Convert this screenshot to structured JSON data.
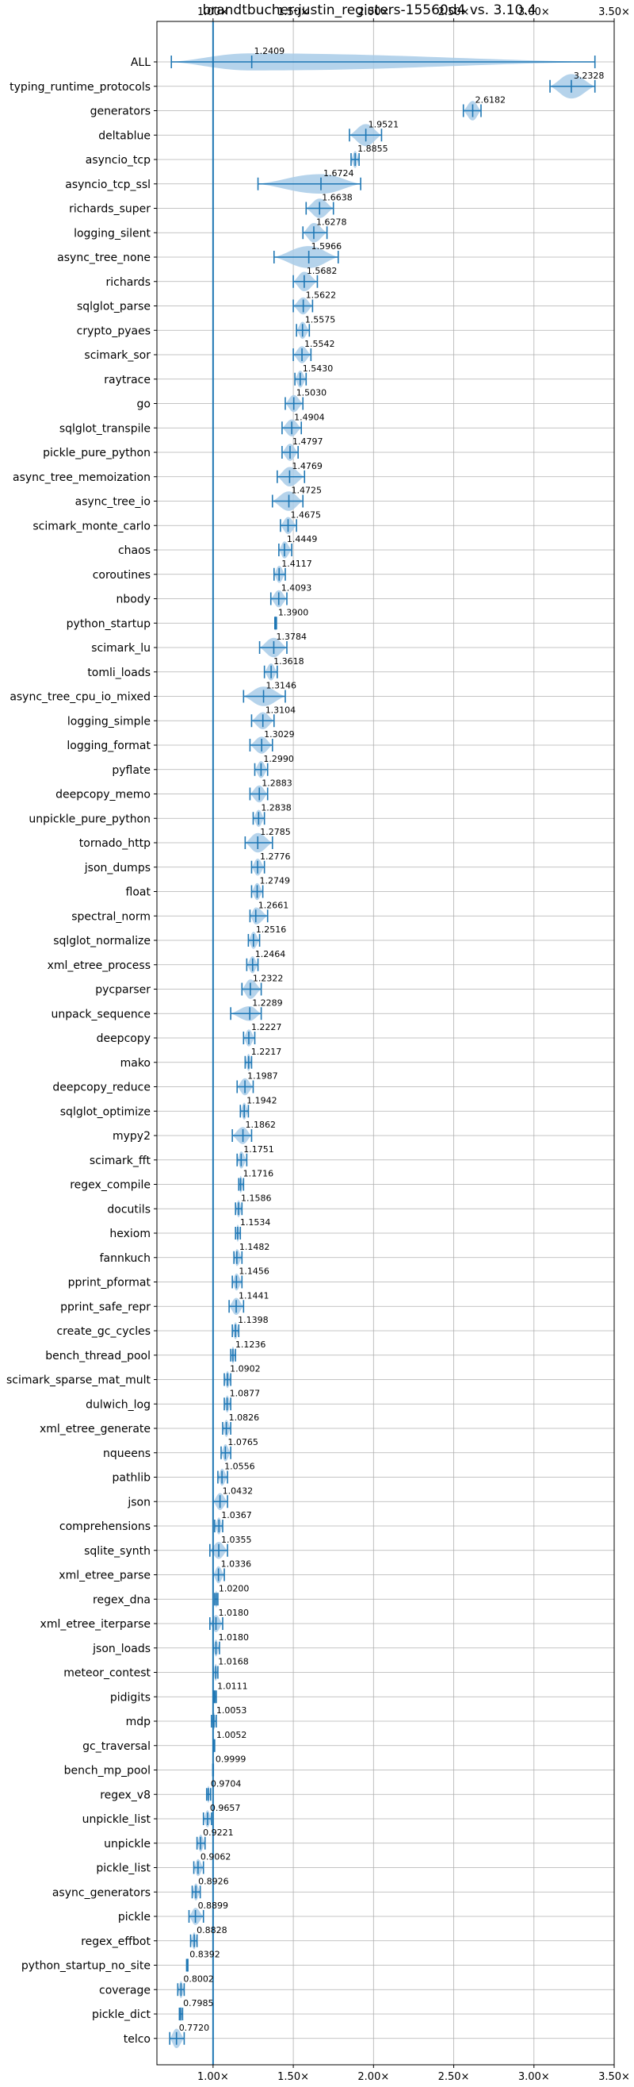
{
  "chart_data": {
    "type": "violin",
    "title": "brandtbucher-justin_registers-15560d4 vs. 3.10.4",
    "xlabel": "",
    "ylabel": "",
    "xlim": [
      0.65,
      3.5
    ],
    "x_ticks": [
      1.0,
      1.5,
      2.0,
      2.5,
      3.0,
      3.5
    ],
    "x_tick_labels": [
      "1.00×",
      "1.50×",
      "2.00×",
      "2.50×",
      "3.00×",
      "3.50×"
    ],
    "reference_line": 1.0,
    "grid": true,
    "color": "#1f77b4",
    "fill_color": "#a8cbe8",
    "benchmarks": [
      {
        "name": "ALL",
        "label": "1.2409",
        "median": 1.2409,
        "min": 0.74,
        "max": 3.38,
        "width": 0.35
      },
      {
        "name": "typing_runtime_protocols",
        "label": "3.2328",
        "median": 3.2328,
        "min": 3.1,
        "max": 3.38,
        "width": 0.5
      },
      {
        "name": "generators",
        "label": "2.6182",
        "median": 2.6182,
        "min": 2.56,
        "max": 2.67,
        "width": 0.4
      },
      {
        "name": "deltablue",
        "label": "1.9521",
        "median": 1.9521,
        "min": 1.85,
        "max": 2.05,
        "width": 0.45
      },
      {
        "name": "asyncio_tcp",
        "label": "1.8855",
        "median": 1.8855,
        "min": 1.86,
        "max": 1.91,
        "width": 0.35
      },
      {
        "name": "asyncio_tcp_ssl",
        "label": "1.6724",
        "median": 1.6724,
        "min": 1.28,
        "max": 1.92,
        "width": 0.4
      },
      {
        "name": "richards_super",
        "label": "1.6638",
        "median": 1.6638,
        "min": 1.58,
        "max": 1.75,
        "width": 0.4
      },
      {
        "name": "logging_silent",
        "label": "1.6278",
        "median": 1.6278,
        "min": 1.56,
        "max": 1.71,
        "width": 0.4
      },
      {
        "name": "async_tree_none",
        "label": "1.5966",
        "median": 1.5966,
        "min": 1.38,
        "max": 1.78,
        "width": 0.45
      },
      {
        "name": "richards",
        "label": "1.5682",
        "median": 1.5682,
        "min": 1.5,
        "max": 1.65,
        "width": 0.4
      },
      {
        "name": "sqlglot_parse",
        "label": "1.5622",
        "median": 1.5622,
        "min": 1.5,
        "max": 1.62,
        "width": 0.35
      },
      {
        "name": "crypto_pyaes",
        "label": "1.5575",
        "median": 1.5575,
        "min": 1.52,
        "max": 1.6,
        "width": 0.35
      },
      {
        "name": "scimark_sor",
        "label": "1.5542",
        "median": 1.5542,
        "min": 1.5,
        "max": 1.61,
        "width": 0.35
      },
      {
        "name": "raytrace",
        "label": "1.5430",
        "median": 1.543,
        "min": 1.51,
        "max": 1.58,
        "width": 0.35
      },
      {
        "name": "go",
        "label": "1.5030",
        "median": 1.503,
        "min": 1.45,
        "max": 1.56,
        "width": 0.35
      },
      {
        "name": "sqlglot_transpile",
        "label": "1.4904",
        "median": 1.4904,
        "min": 1.43,
        "max": 1.55,
        "width": 0.35
      },
      {
        "name": "pickle_pure_python",
        "label": "1.4797",
        "median": 1.4797,
        "min": 1.43,
        "max": 1.53,
        "width": 0.35
      },
      {
        "name": "async_tree_memoization",
        "label": "1.4769",
        "median": 1.4769,
        "min": 1.4,
        "max": 1.57,
        "width": 0.4
      },
      {
        "name": "async_tree_io",
        "label": "1.4725",
        "median": 1.4725,
        "min": 1.37,
        "max": 1.56,
        "width": 0.4
      },
      {
        "name": "scimark_monte_carlo",
        "label": "1.4675",
        "median": 1.4675,
        "min": 1.42,
        "max": 1.52,
        "width": 0.35
      },
      {
        "name": "chaos",
        "label": "1.4449",
        "median": 1.4449,
        "min": 1.41,
        "max": 1.49,
        "width": 0.35
      },
      {
        "name": "coroutines",
        "label": "1.4117",
        "median": 1.4117,
        "min": 1.38,
        "max": 1.45,
        "width": 0.35
      },
      {
        "name": "nbody",
        "label": "1.4093",
        "median": 1.4093,
        "min": 1.36,
        "max": 1.46,
        "width": 0.35
      },
      {
        "name": "python_startup",
        "label": "1.3900",
        "median": 1.39,
        "min": 1.385,
        "max": 1.395,
        "width": 0.3
      },
      {
        "name": "scimark_lu",
        "label": "1.3784",
        "median": 1.3784,
        "min": 1.29,
        "max": 1.46,
        "width": 0.4
      },
      {
        "name": "tomli_loads",
        "label": "1.3618",
        "median": 1.3618,
        "min": 1.32,
        "max": 1.4,
        "width": 0.35
      },
      {
        "name": "async_tree_cpu_io_mixed",
        "label": "1.3146",
        "median": 1.3146,
        "min": 1.19,
        "max": 1.45,
        "width": 0.4
      },
      {
        "name": "logging_simple",
        "label": "1.3104",
        "median": 1.3104,
        "min": 1.24,
        "max": 1.38,
        "width": 0.35
      },
      {
        "name": "logging_format",
        "label": "1.3029",
        "median": 1.3029,
        "min": 1.23,
        "max": 1.37,
        "width": 0.35
      },
      {
        "name": "pyflate",
        "label": "1.2990",
        "median": 1.299,
        "min": 1.26,
        "max": 1.34,
        "width": 0.35
      },
      {
        "name": "deepcopy_memo",
        "label": "1.2883",
        "median": 1.2883,
        "min": 1.23,
        "max": 1.34,
        "width": 0.35
      },
      {
        "name": "unpickle_pure_python",
        "label": "1.2838",
        "median": 1.2838,
        "min": 1.25,
        "max": 1.32,
        "width": 0.35
      },
      {
        "name": "tornado_http",
        "label": "1.2785",
        "median": 1.2785,
        "min": 1.2,
        "max": 1.37,
        "width": 0.4
      },
      {
        "name": "json_dumps",
        "label": "1.2776",
        "median": 1.2776,
        "min": 1.24,
        "max": 1.32,
        "width": 0.35
      },
      {
        "name": "float",
        "label": "1.2749",
        "median": 1.2749,
        "min": 1.24,
        "max": 1.31,
        "width": 0.35
      },
      {
        "name": "spectral_norm",
        "label": "1.2661",
        "median": 1.2661,
        "min": 1.23,
        "max": 1.34,
        "width": 0.35
      },
      {
        "name": "sqlglot_normalize",
        "label": "1.2516",
        "median": 1.2516,
        "min": 1.22,
        "max": 1.29,
        "width": 0.35
      },
      {
        "name": "xml_etree_process",
        "label": "1.2464",
        "median": 1.2464,
        "min": 1.21,
        "max": 1.28,
        "width": 0.35
      },
      {
        "name": "pycparser",
        "label": "1.2322",
        "median": 1.2322,
        "min": 1.18,
        "max": 1.3,
        "width": 0.4
      },
      {
        "name": "unpack_sequence",
        "label": "1.2289",
        "median": 1.2289,
        "min": 1.11,
        "max": 1.3,
        "width": 0.3
      },
      {
        "name": "deepcopy",
        "label": "1.2227",
        "median": 1.2227,
        "min": 1.19,
        "max": 1.26,
        "width": 0.35
      },
      {
        "name": "mako",
        "label": "1.2217",
        "median": 1.2217,
        "min": 1.2,
        "max": 1.24,
        "width": 0.35
      },
      {
        "name": "deepcopy_reduce",
        "label": "1.1987",
        "median": 1.1987,
        "min": 1.15,
        "max": 1.25,
        "width": 0.35
      },
      {
        "name": "sqlglot_optimize",
        "label": "1.1942",
        "median": 1.1942,
        "min": 1.17,
        "max": 1.22,
        "width": 0.35
      },
      {
        "name": "mypy2",
        "label": "1.1862",
        "median": 1.1862,
        "min": 1.12,
        "max": 1.24,
        "width": 0.35
      },
      {
        "name": "scimark_fft",
        "label": "1.1751",
        "median": 1.1751,
        "min": 1.15,
        "max": 1.21,
        "width": 0.35
      },
      {
        "name": "regex_compile",
        "label": "1.1716",
        "median": 1.1716,
        "min": 1.16,
        "max": 1.19,
        "width": 0.35
      },
      {
        "name": "docutils",
        "label": "1.1586",
        "median": 1.1586,
        "min": 1.14,
        "max": 1.18,
        "width": 0.35
      },
      {
        "name": "hexiom",
        "label": "1.1534",
        "median": 1.1534,
        "min": 1.14,
        "max": 1.17,
        "width": 0.35
      },
      {
        "name": "fannkuch",
        "label": "1.1482",
        "median": 1.1482,
        "min": 1.13,
        "max": 1.18,
        "width": 0.35
      },
      {
        "name": "pprint_pformat",
        "label": "1.1456",
        "median": 1.1456,
        "min": 1.12,
        "max": 1.18,
        "width": 0.35
      },
      {
        "name": "pprint_safe_repr",
        "label": "1.1441",
        "median": 1.1441,
        "min": 1.1,
        "max": 1.19,
        "width": 0.35
      },
      {
        "name": "create_gc_cycles",
        "label": "1.1398",
        "median": 1.1398,
        "min": 1.12,
        "max": 1.16,
        "width": 0.35
      },
      {
        "name": "bench_thread_pool",
        "label": "1.1236",
        "median": 1.1236,
        "min": 1.11,
        "max": 1.14,
        "width": 0.35
      },
      {
        "name": "scimark_sparse_mat_mult",
        "label": "1.0902",
        "median": 1.0902,
        "min": 1.07,
        "max": 1.11,
        "width": 0.35
      },
      {
        "name": "dulwich_log",
        "label": "1.0877",
        "median": 1.0877,
        "min": 1.07,
        "max": 1.11,
        "width": 0.35
      },
      {
        "name": "xml_etree_generate",
        "label": "1.0826",
        "median": 1.0826,
        "min": 1.06,
        "max": 1.11,
        "width": 0.35
      },
      {
        "name": "nqueens",
        "label": "1.0765",
        "median": 1.0765,
        "min": 1.05,
        "max": 1.11,
        "width": 0.35
      },
      {
        "name": "pathlib",
        "label": "1.0556",
        "median": 1.0556,
        "min": 1.03,
        "max": 1.09,
        "width": 0.35
      },
      {
        "name": "json",
        "label": "1.0432",
        "median": 1.0432,
        "min": 1.0,
        "max": 1.09,
        "width": 0.35
      },
      {
        "name": "comprehensions",
        "label": "1.0367",
        "median": 1.0367,
        "min": 1.01,
        "max": 1.06,
        "width": 0.35
      },
      {
        "name": "sqlite_synth",
        "label": "1.0355",
        "median": 1.0355,
        "min": 0.98,
        "max": 1.09,
        "width": 0.35
      },
      {
        "name": "xml_etree_parse",
        "label": "1.0336",
        "median": 1.0336,
        "min": 1.0,
        "max": 1.07,
        "width": 0.35
      },
      {
        "name": "regex_dna",
        "label": "1.0200",
        "median": 1.02,
        "min": 1.01,
        "max": 1.03,
        "width": 0.35
      },
      {
        "name": "xml_etree_iterparse",
        "label": "1.0180",
        "median": 1.018,
        "min": 0.98,
        "max": 1.06,
        "width": 0.35
      },
      {
        "name": "json_loads",
        "label": "1.0180",
        "median": 1.018,
        "min": 1.0,
        "max": 1.04,
        "width": 0.35
      },
      {
        "name": "meteor_contest",
        "label": "1.0168",
        "median": 1.0168,
        "min": 1.0,
        "max": 1.03,
        "width": 0.35
      },
      {
        "name": "pidigits",
        "label": "1.0111",
        "median": 1.0111,
        "min": 1.005,
        "max": 1.02,
        "width": 0.3
      },
      {
        "name": "mdp",
        "label": "1.0053",
        "median": 1.0053,
        "min": 0.99,
        "max": 1.02,
        "width": 0.35
      },
      {
        "name": "gc_traversal",
        "label": "1.0052",
        "median": 1.0052,
        "min": 1.0,
        "max": 1.01,
        "width": 0.3
      },
      {
        "name": "bench_mp_pool",
        "label": "0.9999",
        "median": 0.9999,
        "min": 0.998,
        "max": 1.002,
        "width": 0.3
      },
      {
        "name": "regex_v8",
        "label": "0.9704",
        "median": 0.9704,
        "min": 0.96,
        "max": 0.985,
        "width": 0.35
      },
      {
        "name": "unpickle_list",
        "label": "0.9657",
        "median": 0.9657,
        "min": 0.94,
        "max": 0.99,
        "width": 0.35
      },
      {
        "name": "unpickle",
        "label": "0.9221",
        "median": 0.9221,
        "min": 0.9,
        "max": 0.95,
        "width": 0.35
      },
      {
        "name": "pickle_list",
        "label": "0.9062",
        "median": 0.9062,
        "min": 0.88,
        "max": 0.94,
        "width": 0.35
      },
      {
        "name": "async_generators",
        "label": "0.8926",
        "median": 0.8926,
        "min": 0.87,
        "max": 0.92,
        "width": 0.35
      },
      {
        "name": "pickle",
        "label": "0.8899",
        "median": 0.8899,
        "min": 0.85,
        "max": 0.94,
        "width": 0.35
      },
      {
        "name": "regex_effbot",
        "label": "0.8828",
        "median": 0.8828,
        "min": 0.86,
        "max": 0.9,
        "width": 0.35
      },
      {
        "name": "python_startup_no_site",
        "label": "0.8392",
        "median": 0.8392,
        "min": 0.835,
        "max": 0.843,
        "width": 0.3
      },
      {
        "name": "coverage",
        "label": "0.8002",
        "median": 0.8002,
        "min": 0.78,
        "max": 0.82,
        "width": 0.35
      },
      {
        "name": "pickle_dict",
        "label": "0.7985",
        "median": 0.7985,
        "min": 0.79,
        "max": 0.81,
        "width": 0.3
      },
      {
        "name": "telco",
        "label": "0.7720",
        "median": 0.772,
        "min": 0.73,
        "max": 0.82,
        "width": 0.4
      }
    ]
  }
}
